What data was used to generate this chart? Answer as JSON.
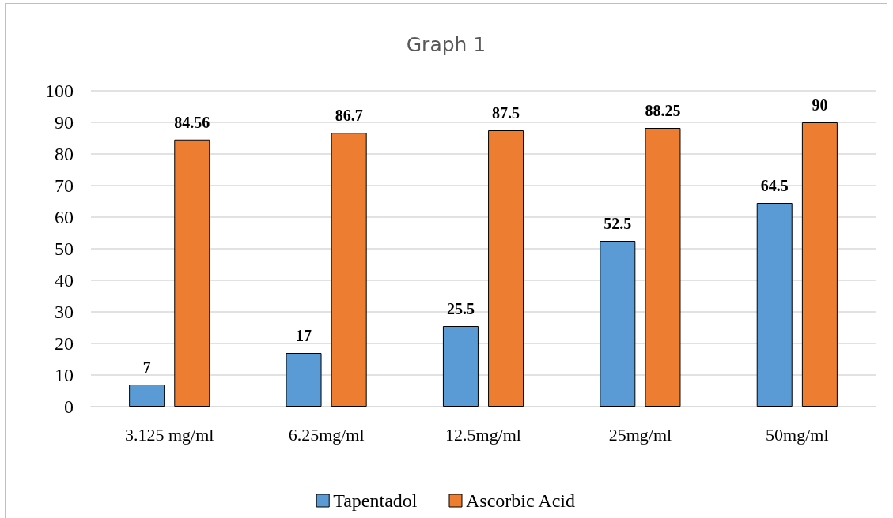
{
  "chart_data": {
    "type": "bar",
    "title": "Graph 1",
    "categories": [
      "3.125 mg/ml",
      "6.25mg/ml",
      "12.5mg/ml",
      "25mg/ml",
      "50mg/ml"
    ],
    "series": [
      {
        "name": "Tapentadol",
        "color": "#5b9bd5",
        "values": [
          7,
          17,
          25.5,
          52.5,
          64.5
        ]
      },
      {
        "name": "Ascorbic Acid",
        "color": "#ed7d31",
        "values": [
          84.56,
          86.7,
          87.5,
          88.25,
          90
        ]
      }
    ],
    "ylim": [
      0,
      100
    ],
    "yticks": [
      0,
      10,
      20,
      30,
      40,
      50,
      60,
      70,
      80,
      90,
      100
    ],
    "grid": "y",
    "legend": "bottom",
    "data_labels": true
  }
}
